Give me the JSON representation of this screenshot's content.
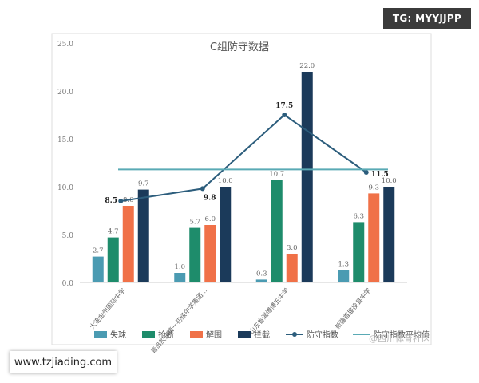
{
  "watermarks": {
    "top_right": "TG: MYYJJPP",
    "bottom_left": "www.tzjiading.com",
    "corner": "@四川体育社区"
  },
  "chart_data": {
    "type": "bar",
    "title": "C组防守数据",
    "xlabel": "",
    "ylabel": "",
    "ylim": [
      0,
      25
    ],
    "yticks": [
      "0.0",
      "5.0",
      "10.0",
      "15.0",
      "20.0",
      "25.0"
    ],
    "grid": false,
    "legend_position": "bottom",
    "categories": [
      "大连金州国际中学",
      "青岛胶东第一初级中学集团…",
      "山东省淄博博五中学",
      "新疆首届投县中学"
    ],
    "series": [
      {
        "name": "失球",
        "color": "#4b9bb2",
        "values": [
          2.7,
          1.0,
          0.3,
          1.3
        ],
        "labels": [
          "2.7",
          "1.0",
          "0.3",
          "1.3"
        ]
      },
      {
        "name": "抢断",
        "color": "#1e8c6b",
        "values": [
          4.7,
          5.7,
          10.7,
          6.3
        ],
        "labels": [
          "4.7",
          "5.7",
          "10.7",
          "6.3"
        ]
      },
      {
        "name": "解围",
        "color": "#f07148",
        "values": [
          8.0,
          6.0,
          3.0,
          9.3
        ],
        "labels": [
          "8.0",
          "6.0",
          "3.0",
          "9.3"
        ]
      },
      {
        "name": "拦截",
        "color": "#1b3a5a",
        "values": [
          9.7,
          10.0,
          22.0,
          10.0
        ],
        "labels": [
          "9.7",
          "10.0",
          "22.0",
          "10.0"
        ]
      }
    ],
    "lines": [
      {
        "name": "防守指数",
        "color": "#2c5d7c",
        "marker": true,
        "values": [
          8.5,
          9.8,
          17.5,
          11.5
        ],
        "labels": [
          "8.5",
          "9.8",
          "17.5",
          "11.5"
        ]
      },
      {
        "name": "防守指数平均值",
        "color": "#5aaab5",
        "marker": false,
        "value": 11.8
      }
    ]
  }
}
